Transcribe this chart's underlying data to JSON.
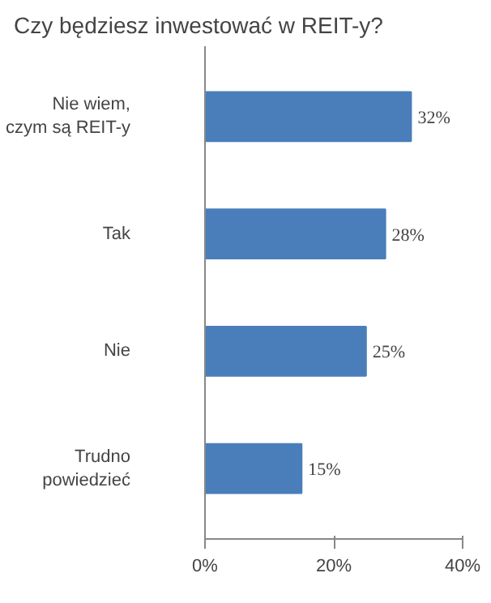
{
  "chart_data": {
    "type": "bar",
    "orientation": "horizontal",
    "title": "Czy będziesz inwestować w REIT-y?",
    "categories": [
      "Nie wiem,\nczym są REIT-y",
      "Tak",
      "Nie",
      "Trudno\npowiedzieć"
    ],
    "values": [
      32,
      28,
      25,
      15
    ],
    "color": "#4a7ebb",
    "value_labels": [
      "32%",
      "28%",
      "25%",
      "15%"
    ],
    "xlim": [
      0,
      40
    ],
    "xticks": [
      {
        "value": 0,
        "label": "0%"
      },
      {
        "value": 20,
        "label": "20%"
      },
      {
        "value": 40,
        "label": "40%"
      }
    ],
    "grid": false
  }
}
